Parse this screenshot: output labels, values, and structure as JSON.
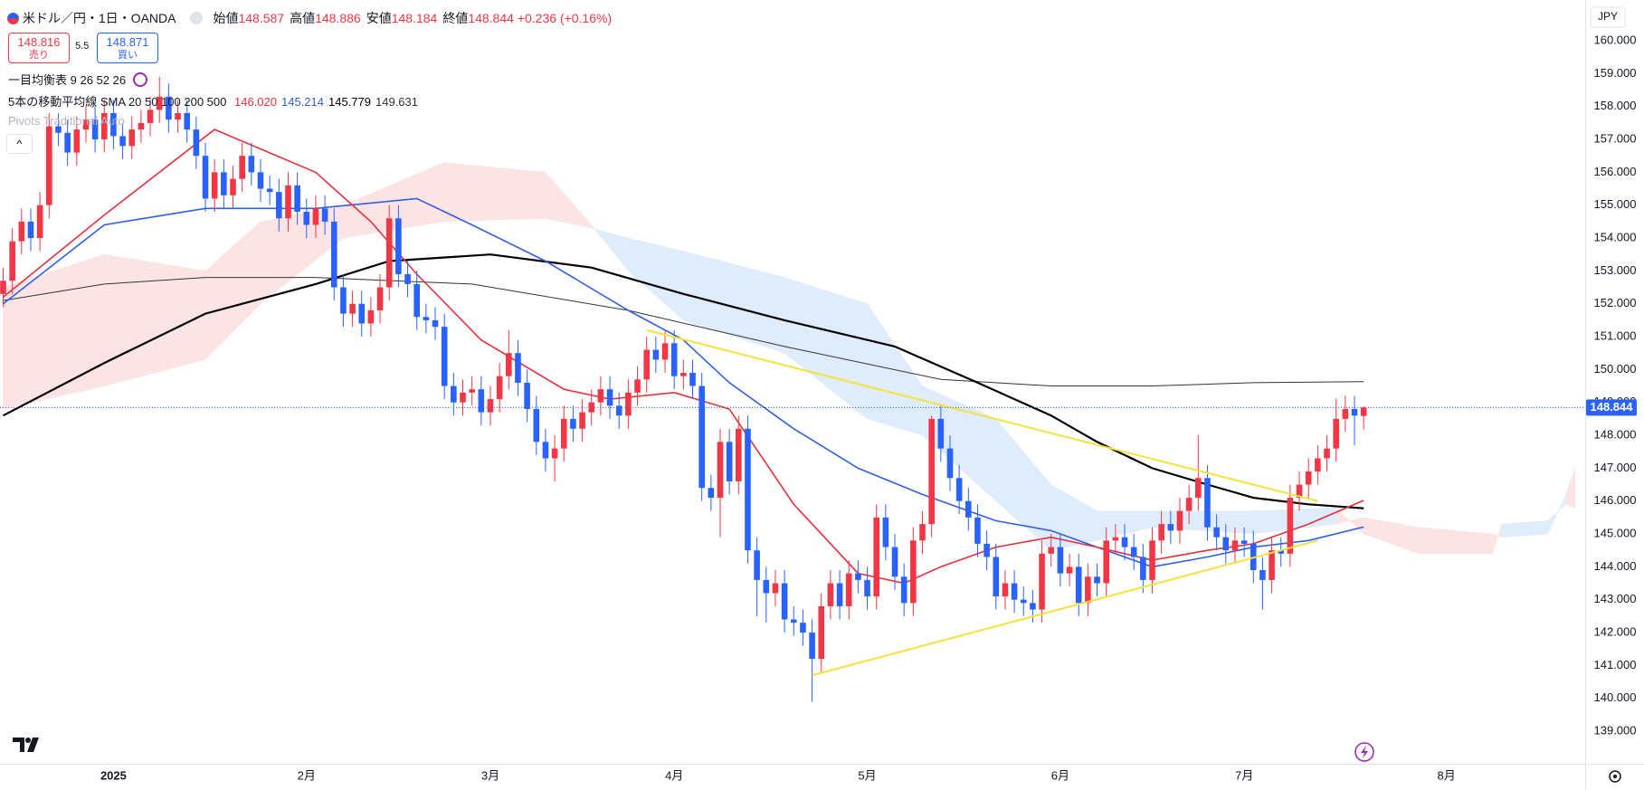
{
  "chart_data": {
    "type": "candlestick",
    "categories": [
      null,
      null,
      null,
      null,
      null,
      null,
      null,
      null,
      null,
      null,
      null,
      null,
      "2025",
      null,
      null,
      null,
      null,
      null,
      null,
      null,
      null,
      null,
      null,
      null,
      null,
      null,
      null,
      null,
      null,
      null,
      null,
      null,
      null,
      "2月",
      null,
      null,
      null,
      null,
      null,
      null,
      null,
      null,
      null,
      null,
      null,
      null,
      null,
      null,
      null,
      null,
      null,
      null,
      null,
      "3月",
      null,
      null,
      null,
      null,
      null,
      null,
      null,
      null,
      null,
      null,
      null,
      null,
      null,
      null,
      null,
      null,
      null,
      null,
      null,
      "4月",
      null,
      null,
      null,
      null,
      null,
      null,
      null,
      null,
      null,
      null,
      null,
      null,
      null,
      null,
      null,
      null,
      null,
      null,
      null,
      null,
      "5月",
      null,
      null,
      null,
      null,
      null,
      null,
      null,
      null,
      null,
      null,
      null,
      null,
      null,
      null,
      null,
      null,
      null,
      null,
      null,
      null,
      "6月",
      null,
      null,
      null,
      null,
      null,
      null,
      null,
      null,
      null,
      null,
      null,
      null,
      null,
      null,
      null,
      null,
      null,
      null,
      null,
      "7月",
      null,
      null,
      null,
      null,
      null,
      null,
      null,
      null,
      null,
      null,
      null,
      null,
      null,
      null,
      null,
      null,
      null,
      null,
      null,
      null,
      null,
      "8月",
      null,
      null,
      null,
      null,
      null,
      null,
      null,
      null,
      null,
      null,
      null,
      null,
      null,
      null
    ],
    "open": [
      152.3,
      152.7,
      153.9,
      154.5,
      154.0,
      155.0,
      157.4,
      157.2,
      156.6,
      157.3,
      157.6,
      157.0,
      157.8,
      157.1,
      156.8,
      157.3,
      157.5,
      157.9,
      158.3,
      157.6,
      157.8,
      157.3,
      156.5,
      155.2,
      156.0,
      155.3,
      155.8,
      156.5,
      156.0,
      155.5,
      155.4,
      154.6,
      155.6,
      154.8,
      154.4,
      154.9,
      154.5,
      152.5,
      151.7,
      152.0,
      151.4,
      151.8,
      152.5,
      154.6,
      152.9,
      152.6,
      151.6,
      151.5,
      151.3,
      149.5,
      149.0,
      149.3,
      149.4,
      148.7,
      149.1,
      149.8,
      150.5,
      149.6,
      148.8,
      147.8,
      147.3,
      147.6,
      148.5,
      148.2,
      148.7,
      149.0,
      149.4,
      148.9,
      148.6,
      149.3,
      149.7,
      150.6,
      150.3,
      150.8,
      149.8,
      149.9,
      149.5,
      146.4,
      146.1,
      147.8,
      146.6,
      148.2,
      144.5,
      143.6,
      143.2,
      143.5,
      142.4,
      142.3,
      142.0,
      141.2,
      142.8,
      143.5,
      142.8,
      143.8,
      143.6,
      143.1,
      145.5,
      144.6,
      143.7,
      142.9,
      144.8,
      145.3,
      148.5,
      147.6,
      146.7,
      146.0,
      145.5,
      144.7,
      144.3,
      143.1,
      143.5,
      143.0,
      142.9,
      142.7,
      144.4,
      144.6,
      143.8,
      144.0,
      142.9,
      143.7,
      143.5,
      144.8,
      144.9,
      144.6,
      144.3,
      143.6,
      144.8,
      145.3,
      145.1,
      145.7,
      146.1,
      146.7,
      145.2,
      144.9,
      144.5,
      144.8,
      144.7,
      143.9,
      143.6,
      144.5,
      144.4,
      146.1,
      146.5,
      146.9,
      147.3,
      147.6,
      148.5,
      148.8,
      148.587,
      null,
      null,
      null,
      null,
      null,
      null,
      null,
      null,
      null,
      null,
      null,
      null,
      null,
      null,
      null,
      null,
      null,
      null,
      null,
      null,
      null,
      null,
      null
    ],
    "high": [
      153.1,
      154.3,
      154.9,
      154.9,
      155.4,
      157.8,
      157.8,
      157.6,
      157.7,
      158.0,
      158.0,
      158.2,
      158.2,
      157.5,
      157.7,
      157.9,
      158.3,
      158.9,
      158.7,
      158.2,
      158.2,
      157.7,
      156.9,
      156.4,
      156.4,
      156.2,
      156.9,
      156.9,
      156.4,
      155.9,
      155.8,
      156.0,
      156.0,
      155.2,
      155.3,
      155.3,
      154.9,
      152.9,
      152.4,
      152.4,
      152.2,
      152.9,
      155.0,
      155.0,
      153.3,
      153.0,
      152.0,
      151.9,
      151.7,
      149.9,
      149.7,
      149.8,
      149.8,
      149.5,
      150.2,
      151.2,
      150.9,
      150.0,
      149.2,
      148.2,
      148.0,
      148.9,
      148.9,
      149.1,
      149.4,
      149.8,
      149.8,
      149.3,
      149.7,
      150.1,
      151.0,
      151.0,
      151.2,
      151.2,
      150.3,
      150.3,
      149.9,
      146.8,
      148.2,
      148.2,
      148.6,
      148.6,
      144.9,
      144.0,
      143.9,
      143.9,
      142.8,
      142.7,
      142.4,
      143.2,
      143.9,
      143.9,
      144.2,
      144.2,
      144.0,
      145.9,
      145.9,
      145.0,
      144.1,
      145.2,
      145.7,
      148.6,
      148.9,
      148.0,
      147.1,
      146.4,
      145.9,
      145.1,
      144.7,
      143.9,
      143.9,
      143.4,
      143.3,
      144.8,
      145.0,
      145.0,
      144.4,
      144.4,
      144.1,
      144.1,
      145.2,
      145.3,
      145.3,
      145.0,
      144.7,
      145.2,
      145.7,
      145.7,
      146.1,
      146.5,
      148.0,
      147.1,
      145.6,
      145.3,
      145.2,
      145.2,
      145.1,
      144.3,
      144.9,
      144.9,
      146.5,
      146.9,
      147.3,
      147.7,
      148.0,
      149.1,
      149.2,
      149.2,
      148.886,
      null,
      null,
      null,
      null,
      null,
      null,
      null,
      null,
      null,
      null,
      null,
      null,
      null,
      null,
      null,
      null,
      null,
      null,
      null,
      null,
      null,
      null,
      null
    ],
    "low": [
      151.9,
      152.3,
      153.5,
      153.6,
      153.6,
      154.6,
      156.8,
      156.2,
      156.2,
      156.9,
      156.6,
      156.6,
      156.7,
      156.4,
      156.4,
      156.9,
      157.1,
      157.5,
      157.2,
      157.2,
      156.9,
      156.1,
      154.8,
      154.8,
      154.9,
      154.9,
      155.4,
      155.6,
      155.1,
      155.0,
      154.2,
      154.2,
      154.4,
      154.0,
      154.0,
      154.1,
      152.1,
      151.3,
      151.3,
      151.0,
      151.0,
      151.4,
      152.1,
      152.5,
      152.2,
      151.2,
      151.1,
      150.9,
      149.1,
      148.6,
      148.6,
      148.9,
      148.3,
      148.3,
      148.7,
      149.4,
      149.2,
      148.4,
      147.4,
      146.9,
      146.6,
      147.2,
      147.8,
      147.8,
      148.3,
      148.6,
      148.5,
      148.2,
      148.2,
      148.9,
      149.3,
      149.9,
      149.9,
      149.4,
      149.4,
      149.1,
      146.0,
      145.7,
      144.9,
      146.2,
      146.2,
      144.1,
      142.5,
      142.3,
      142.8,
      142.0,
      141.9,
      141.6,
      139.9,
      140.8,
      142.4,
      142.4,
      142.4,
      143.2,
      142.7,
      142.7,
      144.2,
      143.3,
      142.5,
      142.5,
      144.4,
      144.9,
      147.2,
      146.3,
      145.6,
      145.1,
      144.3,
      143.9,
      142.7,
      142.7,
      142.6,
      142.5,
      142.3,
      142.3,
      144.0,
      143.4,
      143.4,
      142.5,
      142.5,
      143.1,
      143.1,
      144.4,
      144.2,
      143.9,
      143.2,
      143.2,
      144.4,
      144.7,
      144.7,
      145.3,
      145.7,
      144.8,
      144.5,
      144.1,
      144.1,
      144.3,
      143.5,
      142.7,
      143.2,
      144.0,
      144.0,
      145.7,
      146.1,
      146.5,
      146.9,
      147.2,
      148.1,
      147.7,
      148.184,
      null,
      null,
      null,
      null,
      null,
      null,
      null,
      null,
      null,
      null,
      null,
      null,
      null,
      null,
      null,
      null,
      null,
      null,
      null,
      null,
      null,
      null,
      null
    ],
    "close": [
      152.7,
      153.9,
      154.5,
      154.0,
      155.0,
      157.4,
      157.2,
      156.6,
      157.3,
      157.6,
      157.0,
      157.8,
      157.1,
      156.8,
      157.3,
      157.5,
      157.9,
      158.3,
      157.6,
      157.8,
      157.3,
      156.5,
      155.2,
      156.0,
      155.3,
      155.8,
      156.5,
      156.0,
      155.5,
      155.4,
      154.6,
      155.6,
      154.8,
      154.4,
      154.9,
      154.5,
      152.5,
      151.7,
      152.0,
      151.4,
      151.8,
      152.5,
      154.6,
      152.9,
      152.6,
      151.6,
      151.5,
      151.3,
      149.5,
      149.0,
      149.3,
      149.4,
      148.7,
      149.1,
      149.8,
      150.5,
      149.6,
      148.8,
      147.8,
      147.3,
      147.6,
      148.5,
      148.2,
      148.7,
      149.0,
      149.4,
      148.9,
      148.6,
      149.3,
      149.7,
      150.6,
      150.3,
      150.8,
      149.8,
      149.9,
      149.5,
      146.4,
      146.1,
      147.8,
      146.6,
      148.2,
      144.5,
      143.6,
      143.2,
      143.5,
      142.4,
      142.3,
      142.0,
      141.2,
      142.8,
      143.5,
      142.8,
      143.8,
      143.6,
      143.1,
      145.5,
      144.6,
      143.7,
      142.9,
      144.8,
      145.3,
      148.5,
      147.6,
      146.7,
      146.0,
      145.5,
      144.7,
      144.3,
      143.1,
      143.5,
      143.0,
      142.9,
      142.7,
      144.4,
      144.6,
      143.8,
      144.0,
      142.9,
      143.7,
      143.5,
      144.8,
      144.9,
      144.6,
      144.3,
      143.6,
      144.8,
      145.3,
      145.1,
      145.7,
      146.1,
      146.7,
      145.2,
      144.9,
      144.5,
      144.8,
      144.7,
      143.9,
      143.6,
      144.5,
      144.4,
      146.1,
      146.5,
      146.9,
      147.3,
      147.6,
      148.5,
      148.8,
      148.6,
      148.844,
      null,
      null,
      null,
      null,
      null,
      null,
      null,
      null,
      null,
      null,
      null,
      null,
      null,
      null,
      null,
      null,
      null,
      null,
      null,
      null,
      null,
      null,
      null
    ],
    "up_color": "#f23645",
    "down_color": "#2962ff",
    "ylim": [
      138.01,
      161.24
    ],
    "yticks": [
      {
        "value": 139,
        "label": "139.000"
      },
      {
        "value": 140,
        "label": "140.000"
      },
      {
        "value": 141,
        "label": "141.000"
      },
      {
        "value": 142,
        "label": "142.000"
      },
      {
        "value": 143,
        "label": "143.000"
      },
      {
        "value": 144,
        "label": "144.000"
      },
      {
        "value": 145,
        "label": "145.000"
      },
      {
        "value": 146,
        "label": "146.000"
      },
      {
        "value": 147,
        "label": "147.000"
      },
      {
        "value": 148,
        "label": "148.000"
      },
      {
        "value": 149,
        "label": "149.000"
      },
      {
        "value": 150,
        "label": "150.000"
      },
      {
        "value": 151,
        "label": "151.000"
      },
      {
        "value": 152,
        "label": "152.000"
      },
      {
        "value": 153,
        "label": "153.000"
      },
      {
        "value": 154,
        "label": "154.000"
      },
      {
        "value": 155,
        "label": "155.000"
      },
      {
        "value": 156,
        "label": "156.000"
      },
      {
        "value": 157,
        "label": "157.000"
      },
      {
        "value": 158,
        "label": "158.000"
      },
      {
        "value": 159,
        "label": "159.000"
      },
      {
        "value": 160,
        "label": "160.000"
      }
    ],
    "grid": false,
    "last_price": 148.844,
    "last_price_color": "#2962ff",
    "currency": "JPY",
    "moving_averages": [
      {
        "color": "#e5303c",
        "width": 1.6,
        "x": [
          0,
          11,
          23,
          34,
          40,
          45,
          52,
          61,
          66,
          73,
          79,
          86,
          93,
          98,
          102,
          108,
          114,
          119,
          125,
          131,
          136,
          142,
          148
        ],
        "values": [
          152.2,
          154.7,
          157.3,
          156.0,
          154.5,
          152.9,
          150.9,
          149.4,
          149.1,
          149.3,
          148.8,
          145.9,
          143.8,
          143.5,
          144.0,
          144.6,
          144.9,
          144.6,
          144.2,
          144.5,
          144.7,
          145.3,
          146.02
        ]
      },
      {
        "color": "#2f5fe8",
        "width": 1.6,
        "x": [
          0,
          11,
          22,
          34,
          45,
          51,
          59,
          68,
          74,
          79,
          86,
          93,
          100,
          108,
          114,
          119,
          125,
          131,
          136,
          142,
          148
        ],
        "values": [
          152.0,
          154.4,
          154.9,
          154.9,
          155.2,
          154.4,
          153.3,
          151.8,
          150.9,
          149.6,
          148.2,
          147.0,
          146.2,
          145.4,
          145.1,
          144.6,
          144.0,
          144.3,
          144.6,
          144.8,
          145.214
        ]
      },
      {
        "color": "#000000",
        "width": 2.2,
        "x": [
          0,
          11,
          22,
          34,
          42,
          53,
          64,
          74,
          85,
          97,
          106,
          114,
          119,
          125,
          131,
          136,
          142,
          148
        ],
        "values": [
          148.6,
          150.2,
          151.7,
          152.6,
          153.3,
          153.5,
          153.1,
          152.3,
          151.5,
          150.7,
          149.6,
          148.6,
          147.8,
          147.0,
          146.5,
          146.1,
          145.9,
          145.779
        ]
      },
      {
        "color": "#333333",
        "width": 1,
        "x": [
          0,
          11,
          22,
          34,
          51,
          68,
          85,
          102,
          114,
          125,
          136,
          148
        ],
        "values": [
          152.1,
          152.6,
          152.8,
          152.8,
          152.6,
          151.8,
          150.7,
          149.7,
          149.5,
          149.5,
          149.6,
          149.631
        ]
      }
    ],
    "cloud": {
      "colors": [
        "#fde4e4",
        "#dfecfb"
      ],
      "x": [
        0,
        11,
        22,
        28,
        37,
        48,
        59,
        64,
        68,
        74,
        85,
        94,
        100,
        108,
        114,
        119,
        125,
        136,
        145,
        148,
        154,
        162,
        163,
        168,
        170,
        171
      ],
      "span_a": [
        152.5,
        153.5,
        153.0,
        154.5,
        155.0,
        156.3,
        156.0,
        154.4,
        153.0,
        151.5,
        150.5,
        148.5,
        148.0,
        146.0,
        144.5,
        144.8,
        145.2,
        145.0,
        145.3,
        145.5,
        145.2,
        145.0,
        144.9,
        145.0,
        146.2,
        147.0
      ],
      "span_b": [
        148.8,
        149.5,
        150.3,
        152.0,
        154.0,
        154.5,
        154.6,
        154.3,
        154.0,
        153.6,
        152.8,
        152.0,
        149.5,
        148.5,
        146.5,
        145.7,
        145.7,
        145.7,
        145.8,
        145.0,
        144.4,
        144.4,
        145.3,
        145.4,
        145.9,
        145.8
      ]
    },
    "trendlines": {
      "color": "#f5e23b",
      "lines": [
        {
          "x": [
            70,
            143
          ],
          "values": [
            151.2,
            146.0
          ]
        },
        {
          "x": [
            88,
            143
          ],
          "values": [
            140.7,
            144.8
          ]
        }
      ]
    }
  },
  "header": {
    "symbol": "米ドル／円・1日・OANDA",
    "ohlc": [
      {
        "label": "始値",
        "value": "148.587"
      },
      {
        "label": "高値",
        "value": "148.886"
      },
      {
        "label": "安値",
        "value": "148.184"
      },
      {
        "label": "終値",
        "value": "148.844"
      }
    ],
    "change": "+0.236 (+0.16%)",
    "sell": {
      "price": "148.816",
      "label": "売り"
    },
    "spread": "5.5",
    "buy": {
      "price": "148.871",
      "label": "買い"
    },
    "indicators": [
      {
        "name": "一目均衡表",
        "params": "9 26 52 26"
      },
      {
        "name": "5本の移動平均線",
        "params": "SMA 20 50 100 200 500",
        "values": [
          "146.020",
          "145.214",
          "145.779",
          "149.631"
        ]
      },
      {
        "name": "Pivots Traditional Auto"
      }
    ]
  }
}
